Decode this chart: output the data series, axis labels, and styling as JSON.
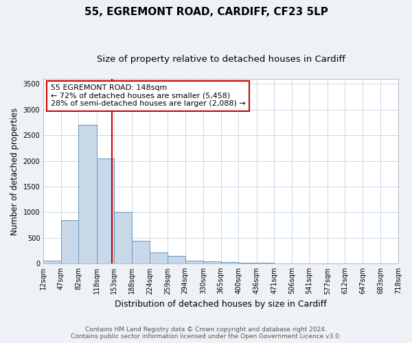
{
  "title1": "55, EGREMONT ROAD, CARDIFF, CF23 5LP",
  "title2": "Size of property relative to detached houses in Cardiff",
  "xlabel": "Distribution of detached houses by size in Cardiff",
  "ylabel": "Number of detached properties",
  "bin_edges": [
    12,
    47,
    82,
    118,
    153,
    188,
    224,
    259,
    294,
    330,
    365,
    400,
    436,
    471,
    506,
    541,
    577,
    612,
    647,
    683,
    718
  ],
  "bar_heights": [
    60,
    850,
    2700,
    2050,
    1000,
    450,
    220,
    150,
    60,
    50,
    30,
    20,
    20,
    5,
    3,
    2,
    2,
    2,
    2,
    2
  ],
  "bar_color": "#c8d8e8",
  "bar_edge_color": "#6699bb",
  "property_size": 148,
  "vline_color": "#cc0000",
  "annotation_line1": "55 EGREMONT ROAD: 148sqm",
  "annotation_line2": "← 72% of detached houses are smaller (5,458)",
  "annotation_line3": "28% of semi-detached houses are larger (2,088) →",
  "annotation_box_color": "#ffffff",
  "annotation_box_edge_color": "#cc0000",
  "ylim": [
    0,
    3600
  ],
  "yticks": [
    0,
    500,
    1000,
    1500,
    2000,
    2500,
    3000,
    3500
  ],
  "footnote": "Contains HM Land Registry data © Crown copyright and database right 2024.\nContains public sector information licensed under the Open Government Licence v3.0.",
  "background_color": "#eef2f6",
  "plot_background_color": "#ffffff",
  "grid_color": "#c8d8e8",
  "title1_fontsize": 11,
  "title2_fontsize": 9.5,
  "xlabel_fontsize": 9,
  "ylabel_fontsize": 8.5,
  "tick_fontsize": 7,
  "annotation_fontsize": 8,
  "footnote_fontsize": 6.5
}
